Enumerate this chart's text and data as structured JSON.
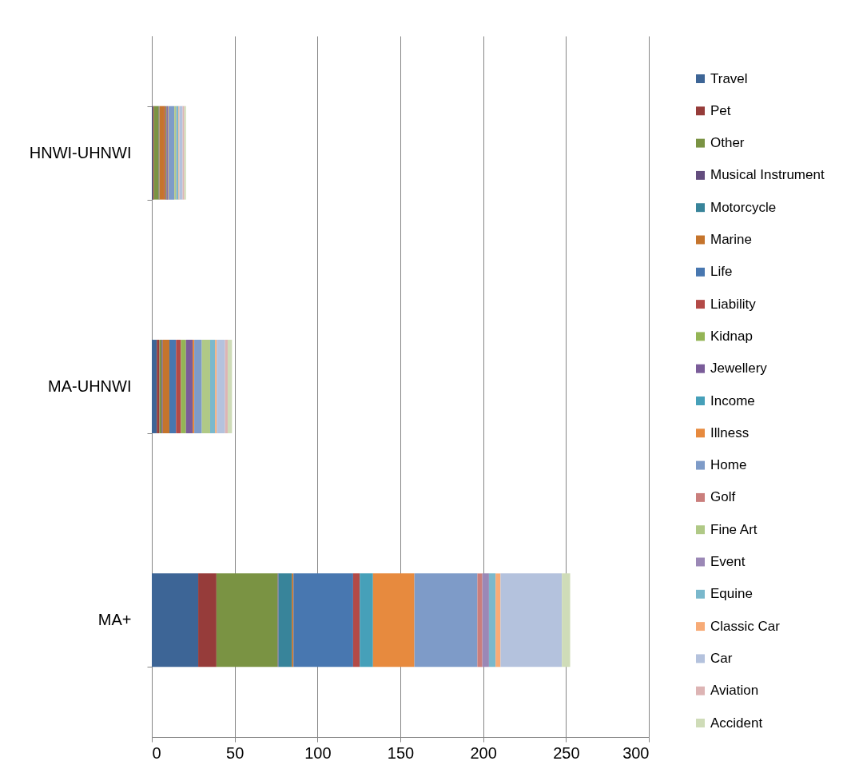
{
  "chart_data": {
    "type": "bar",
    "orientation": "horizontal",
    "stacked": true,
    "categories": [
      "HNWI-UHNWI",
      "MA-UHNWI",
      "MA+"
    ],
    "xlim": [
      0,
      300
    ],
    "xticks": [
      0,
      50,
      100,
      150,
      200,
      250,
      300
    ],
    "grid": "x",
    "legend": "right",
    "series": [
      {
        "name": "Travel",
        "color": "#3d6596",
        "values": [
          0.5,
          3,
          28
        ]
      },
      {
        "name": "Pet",
        "color": "#963c3a",
        "values": [
          0.7,
          1.6,
          11
        ]
      },
      {
        "name": "Other",
        "color": "#7a9343",
        "values": [
          3,
          1.3,
          37
        ]
      },
      {
        "name": "Musical Instrument",
        "color": "#634d7e",
        "values": [
          0.2,
          0.7,
          0.5
        ]
      },
      {
        "name": "Motorcycle",
        "color": "#38849a",
        "values": [
          0.2,
          null,
          8
        ]
      },
      {
        "name": "Marine",
        "color": "#c5742c",
        "values": [
          3,
          4,
          1
        ]
      },
      {
        "name": "Life",
        "color": "#4877b0",
        "values": [
          null,
          4,
          36
        ]
      },
      {
        "name": "Liability",
        "color": "#b34a47",
        "values": [
          0.6,
          3,
          4
        ]
      },
      {
        "name": "Kidnap",
        "color": "#94b555",
        "values": [
          0.6,
          3,
          0
        ]
      },
      {
        "name": "Jewellery",
        "color": "#7a5c99",
        "values": [
          0.8,
          4,
          0
        ]
      },
      {
        "name": "Income",
        "color": "#46a0b9",
        "values": [
          0.2,
          null,
          8
        ]
      },
      {
        "name": "Illness",
        "color": "#e78a3e",
        "values": [
          0.3,
          1,
          25
        ]
      },
      {
        "name": "Home",
        "color": "#7e9bc8",
        "values": [
          3.5,
          4.6,
          38
        ]
      },
      {
        "name": "Golf",
        "color": "#ca7e7c",
        "values": [
          null,
          null,
          3
        ]
      },
      {
        "name": "Fine Art",
        "color": "#b0c986",
        "values": [
          1,
          5,
          0
        ]
      },
      {
        "name": "Event",
        "color": "#9b88b6",
        "values": [
          0.2,
          0,
          4
        ]
      },
      {
        "name": "Equine",
        "color": "#7ab8cc",
        "values": [
          1.3,
          3,
          4
        ]
      },
      {
        "name": "Classic Car",
        "color": "#f7ab77",
        "values": [
          0.5,
          1,
          3
        ]
      },
      {
        "name": "Car",
        "color": "#b4c2dd",
        "values": [
          2,
          5,
          37
        ]
      },
      {
        "name": "Aviation",
        "color": "#ddb4b4",
        "values": [
          1,
          1.6,
          0
        ]
      },
      {
        "name": "Accident",
        "color": "#cfdcb8",
        "values": [
          1,
          2.6,
          5
        ]
      }
    ]
  }
}
